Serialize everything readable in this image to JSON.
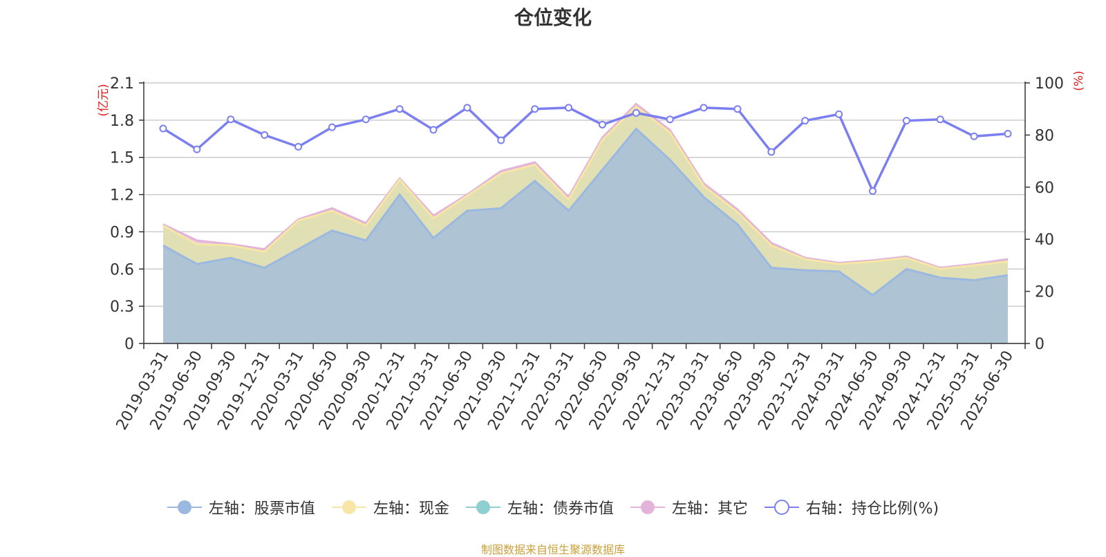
{
  "title": "仓位变化",
  "footer": "制图数据来自恒生聚源数据库",
  "chart_data": {
    "type": "area",
    "title": "仓位变化",
    "categories": [
      "2019-03-31",
      "2019-06-30",
      "2019-09-30",
      "2019-12-31",
      "2020-03-31",
      "2020-06-30",
      "2020-09-30",
      "2020-12-31",
      "2021-03-31",
      "2021-06-30",
      "2021-09-30",
      "2021-12-31",
      "2022-03-31",
      "2022-06-30",
      "2022-09-30",
      "2022-12-31",
      "2023-03-31",
      "2023-06-30",
      "2023-09-30",
      "2023-12-31",
      "2024-03-31",
      "2024-06-30",
      "2024-09-30",
      "2024-12-31",
      "2025-03-31",
      "2025-06-30"
    ],
    "left_axis": {
      "label": "(亿元)",
      "ylim": [
        0,
        2.1
      ],
      "ticks": [
        "0",
        "0.3",
        "0.6",
        "0.9",
        "1.2",
        "1.5",
        "1.8",
        "2.1"
      ]
    },
    "right_axis": {
      "label": "(%)",
      "ylim": [
        0,
        100
      ],
      "ticks": [
        "0",
        "20",
        "40",
        "60",
        "80",
        "100"
      ]
    },
    "grid": true,
    "legend_position": "bottom",
    "series": [
      {
        "name": "左轴：股票市值",
        "axis": "left",
        "stacked": true,
        "color": "#9ab8e0",
        "values": [
          0.79,
          0.64,
          0.69,
          0.61,
          0.76,
          0.91,
          0.83,
          1.2,
          0.85,
          1.07,
          1.09,
          1.31,
          1.07,
          1.4,
          1.73,
          1.48,
          1.18,
          0.96,
          0.61,
          0.59,
          0.58,
          0.39,
          0.6,
          0.53,
          0.51,
          0.55
        ]
      },
      {
        "name": "左轴：现金",
        "axis": "left",
        "stacked": true,
        "color": "#f7e6a6",
        "values": [
          0.16,
          0.16,
          0.1,
          0.13,
          0.23,
          0.16,
          0.12,
          0.12,
          0.16,
          0.12,
          0.28,
          0.13,
          0.09,
          0.24,
          0.18,
          0.22,
          0.09,
          0.1,
          0.18,
          0.09,
          0.06,
          0.27,
          0.09,
          0.07,
          0.12,
          0.11
        ]
      },
      {
        "name": "左轴：债券市值",
        "axis": "left",
        "stacked": true,
        "color": "#8ecfd0",
        "values": [
          0,
          0,
          0,
          0,
          0,
          0,
          0,
          0,
          0,
          0,
          0,
          0,
          0,
          0,
          0,
          0,
          0,
          0,
          0,
          0,
          0,
          0,
          0,
          0,
          0,
          0
        ]
      },
      {
        "name": "左轴：其它",
        "axis": "left",
        "stacked": true,
        "color": "#e3b3d9",
        "values": [
          0.01,
          0.03,
          0.01,
          0.02,
          0.01,
          0.02,
          0.02,
          0.01,
          0.02,
          0.01,
          0.02,
          0.02,
          0.02,
          0.02,
          0.02,
          0.02,
          0.02,
          0.02,
          0.02,
          0.01,
          0.01,
          0.01,
          0.01,
          0.01,
          0.01,
          0.02
        ]
      },
      {
        "name": "右轴：持仓比例(%)",
        "axis": "right",
        "type": "line",
        "color": "#7b7ff0",
        "values": [
          82.5,
          74.5,
          86.0,
          80.0,
          75.5,
          83.0,
          86.0,
          90.0,
          82.0,
          90.5,
          78.0,
          90.0,
          90.5,
          84.0,
          88.5,
          86.0,
          90.5,
          90.0,
          73.5,
          85.5,
          88.0,
          58.5,
          85.5,
          86.0,
          79.5,
          80.5
        ]
      }
    ]
  }
}
